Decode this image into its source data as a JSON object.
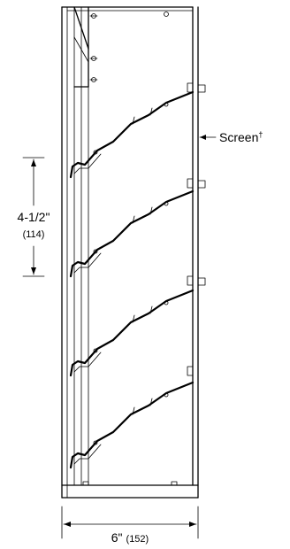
{
  "annotations": {
    "screen_label": "Screen",
    "screen_mark": "†",
    "spacing_label": "4-1/2\"",
    "spacing_metric": "(114)",
    "width_label": "6\"",
    "width_metric": "(152)"
  }
}
